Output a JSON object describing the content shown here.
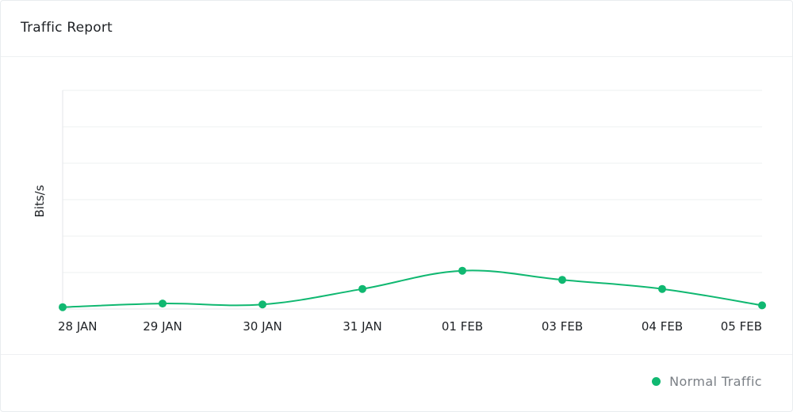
{
  "card": {
    "title": "Traffic Report"
  },
  "legend": {
    "label": "Normal Traffic",
    "color": "#10b871"
  },
  "chart_data": {
    "type": "line",
    "title": "Traffic Report",
    "xlabel": "",
    "ylabel": "Bits/s",
    "categories": [
      "28 JAN",
      "29 JAN",
      "30 JAN",
      "31 JAN",
      "01 FEB",
      "03 FEB",
      "04 FEB",
      "05 FEB"
    ],
    "series": [
      {
        "name": "Normal Traffic",
        "color": "#10b871",
        "values": [
          1,
          3,
          2.5,
          11,
          21,
          16,
          11,
          2
        ]
      }
    ],
    "ylim": [
      0,
      120
    ],
    "grid": true,
    "legend_position": "bottom-right",
    "smooth": true
  }
}
